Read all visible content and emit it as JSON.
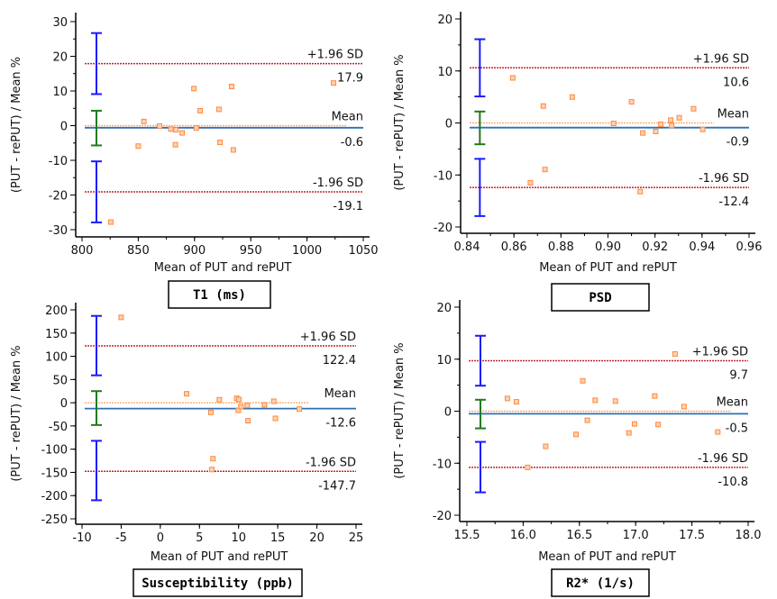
{
  "colors": {
    "points": "#ff8a3d",
    "zero_line": "#ffb07a",
    "mean_line": "#2e6fb5",
    "sd_line": "#c0262c",
    "ci_limits": "#1a1aff",
    "ci_mean": "#1f7a1f"
  },
  "chart_data": [
    {
      "type": "scatter",
      "title": "T1 (ms)",
      "xlabel": "Mean of PUT and rePUT",
      "ylabel": "(PUT - rePUT) / Mean %",
      "xlim": [
        800,
        1050
      ],
      "ylim": [
        -32,
        32
      ],
      "xticks": [
        800,
        850,
        900,
        950,
        1000,
        1050
      ],
      "xminor": 25,
      "yticks": [
        -30,
        -20,
        -10,
        0,
        10,
        20,
        30
      ],
      "yminor": 5,
      "x": [
        825.6,
        850,
        855,
        869,
        879,
        883.5,
        883,
        889,
        899.5,
        901.6,
        905,
        921.7,
        922.7,
        933,
        934.5,
        1023.6
      ],
      "y": [
        -27.8,
        -5.9,
        1.2,
        -0.1,
        -1.0,
        -1.2,
        -5.5,
        -2.1,
        10.7,
        -0.7,
        4.3,
        4.7,
        -4.8,
        11.3,
        -7.0,
        12.3
      ],
      "mean": -0.6,
      "upper_sd": 17.9,
      "lower_sd": -19.1,
      "mean_label": "Mean",
      "mean_value": "-0.6",
      "upper_label": "+1.96 SD",
      "upper_value": "17.9",
      "lower_label": "-1.96 SD",
      "lower_value": "-19.1",
      "ci_x": 812.8,
      "ci_upper": [
        9.1,
        26.7
      ],
      "ci_mean": [
        -5.7,
        4.3
      ],
      "ci_lower": [
        -27.9,
        -10.3
      ],
      "zero_line_end": 1035
    },
    {
      "type": "scatter",
      "title": "PSD",
      "xlabel": "Mean of PUT and rePUT",
      "ylabel": "(PUT - rePUT) / Mean %",
      "xlim": [
        0.84,
        0.96
      ],
      "ylim": [
        -22.4,
        22.4
      ],
      "xticks": [
        "0.84",
        "0.86",
        "0.88",
        "0.90",
        "0.92",
        "0.94",
        "0.96"
      ],
      "xminor": 0.01,
      "yticks": [
        -20,
        -10,
        0,
        10,
        20
      ],
      "yminor": 5,
      "x": [
        0.8595,
        0.867,
        0.8725,
        0.8732,
        0.8848,
        0.9024,
        0.91,
        0.9137,
        0.9148,
        0.9203,
        0.9225,
        0.9267,
        0.9271,
        0.9303,
        0.9364,
        0.9403
      ],
      "y": [
        8.66,
        -11.5,
        3.25,
        -8.95,
        4.98,
        -0.09,
        4.06,
        -13.2,
        -1.93,
        -1.64,
        -0.26,
        0.55,
        -0.49,
        1.0,
        2.73,
        -1.24
      ],
      "mean": -0.9,
      "upper_sd": 10.6,
      "lower_sd": -12.4,
      "mean_label": "Mean",
      "mean_value": "-0.9",
      "upper_label": "+1.96 SD",
      "upper_value": "10.6",
      "lower_label": "-1.96 SD",
      "lower_value": "-12.4",
      "ci_x": 0.8455,
      "ci_upper": [
        5.1,
        16.1
      ],
      "ci_mean": [
        -4.1,
        2.2
      ],
      "ci_lower": [
        -17.9,
        -6.9
      ],
      "zero_line_end": 0.945
    },
    {
      "type": "scatter",
      "title": "Susceptibility (ppb)",
      "xlabel": "Mean of PUT and rePUT",
      "ylabel": "(PUT - rePUT) / Mean %",
      "xlim": [
        -10,
        25
      ],
      "ylim": [
        -262,
        213
      ],
      "xticks": [
        -10,
        -5,
        0,
        5,
        10,
        15,
        20,
        25
      ],
      "xminor": 5,
      "yticks": [
        -250,
        -200,
        -150,
        -100,
        -50,
        0,
        50,
        100,
        150,
        200
      ],
      "yminor": 50,
      "x": [
        -5.0,
        3.36,
        6.46,
        6.73,
        6.58,
        7.54,
        9.76,
        10.03,
        9.96,
        10.3,
        11.1,
        11.2,
        13.3,
        14.5,
        14.7,
        17.75
      ],
      "y": [
        183.8,
        19.3,
        -20.8,
        -120.5,
        -143.8,
        6.4,
        9.6,
        7.0,
        -16.3,
        -8.5,
        -5.9,
        -38.9,
        -4.6,
        3.2,
        -33.7,
        -13.7
      ],
      "mean": -12.6,
      "upper_sd": 122.4,
      "lower_sd": -147.7,
      "mean_label": "Mean",
      "mean_value": "-12.6",
      "upper_label": "+1.96 SD",
      "upper_value": "122.4",
      "lower_label": "-1.96 SD",
      "lower_value": "-147.7",
      "ci_x": -8.16,
      "ci_upper": [
        59,
        187
      ],
      "ci_mean": [
        -48,
        25
      ],
      "ci_lower": [
        -210,
        -82
      ],
      "zero_line_end": 19
    },
    {
      "type": "scatter",
      "title": "R2* (1/s)",
      "xlabel": "Mean of PUT and rePUT",
      "ylabel": "(PUT - rePUT) / Mean %",
      "xlim": [
        15.5,
        18.0
      ],
      "ylim": [
        -22.3,
        21.5
      ],
      "xticks": [
        "15.5",
        "16.0",
        "16.5",
        "17.0",
        "17.5",
        "18.0"
      ],
      "xminor": 0.25,
      "yticks": [
        -20,
        -10,
        0,
        10,
        20
      ],
      "yminor": 5,
      "x": [
        15.86,
        15.94,
        16.04,
        16.2,
        16.47,
        16.53,
        16.57,
        16.64,
        16.82,
        16.94,
        16.99,
        17.17,
        17.2,
        17.35,
        17.43,
        17.73
      ],
      "y": [
        2.45,
        1.81,
        -10.8,
        -6.76,
        -4.46,
        5.84,
        -1.75,
        2.1,
        1.93,
        -4.17,
        -2.45,
        2.91,
        -2.56,
        11.0,
        0.89,
        -4.0
      ],
      "mean": -0.5,
      "upper_sd": 9.7,
      "lower_sd": -10.8,
      "mean_label": "Mean",
      "mean_value": "-0.5",
      "upper_label": "+1.96 SD",
      "upper_value": "9.7",
      "lower_label": "-1.96 SD",
      "lower_value": "-10.8",
      "ci_x": 15.62,
      "ci_upper": [
        4.9,
        14.5
      ],
      "ci_mean": [
        -3.3,
        2.2
      ],
      "ci_lower": [
        -15.6,
        -5.9
      ],
      "zero_line_end": 17.85
    }
  ]
}
